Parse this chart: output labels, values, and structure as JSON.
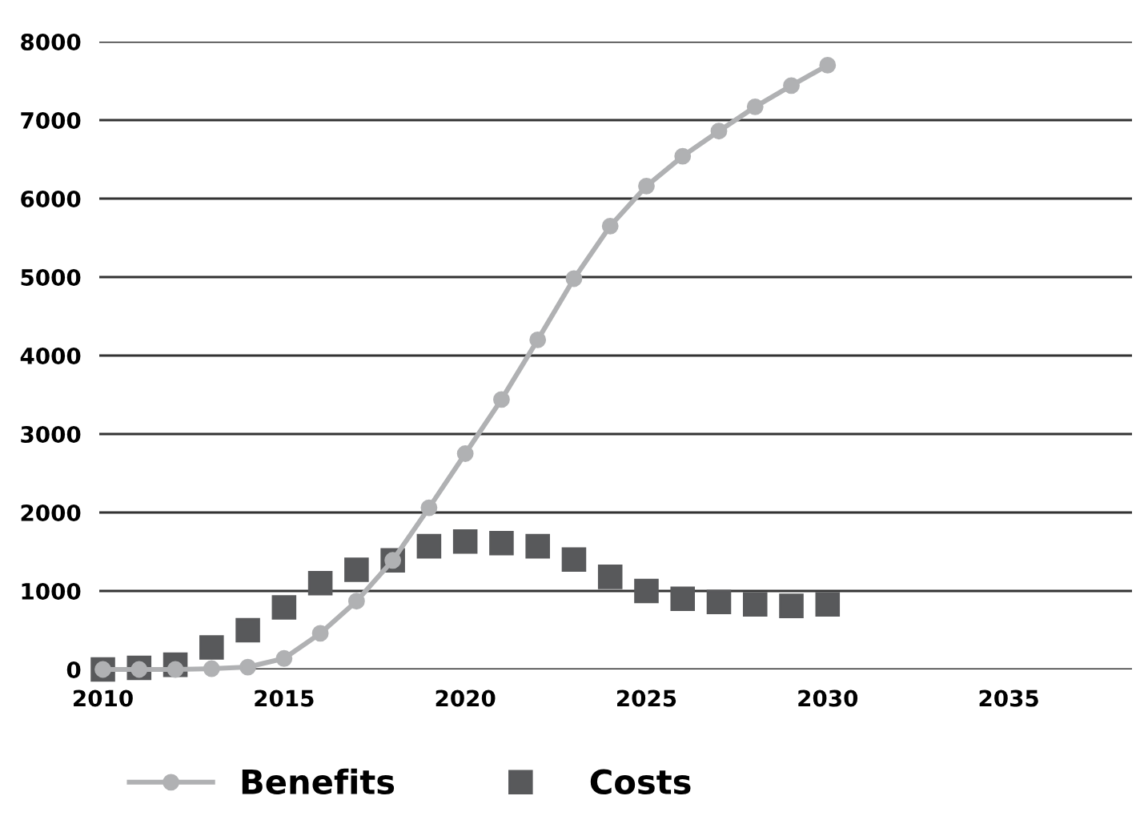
{
  "chart_data": {
    "type": "line",
    "x": [
      2010,
      2011,
      2012,
      2013,
      2014,
      2015,
      2016,
      2017,
      2018,
      2019,
      2020,
      2021,
      2022,
      2023,
      2024,
      2025,
      2026,
      2027,
      2028,
      2029,
      2030
    ],
    "series": [
      {
        "name": "Benefits",
        "color": "#b0b1b3",
        "marker": "circle",
        "values": [
          0,
          0,
          0,
          10,
          30,
          140,
          460,
          870,
          1390,
          2060,
          2750,
          3440,
          4200,
          4980,
          5650,
          6160,
          6540,
          6860,
          7170,
          7440,
          7700
        ]
      },
      {
        "name": "Costs",
        "type": "scatter",
        "color": "#58595b",
        "marker": "square",
        "values": [
          0,
          20,
          60,
          280,
          500,
          790,
          1100,
          1270,
          1390,
          1570,
          1630,
          1610,
          1570,
          1400,
          1180,
          1000,
          900,
          860,
          830,
          810,
          830
        ]
      }
    ],
    "xlim": [
      2009.9,
      2038.4
    ],
    "xticks": [
      2010,
      2015,
      2020,
      2025,
      2030,
      2035
    ],
    "ylim": [
      0,
      8000
    ],
    "yticks": [
      0,
      1000,
      2000,
      3000,
      4000,
      5000,
      6000,
      7000,
      8000
    ],
    "grid": "y",
    "legend": "bottom"
  }
}
